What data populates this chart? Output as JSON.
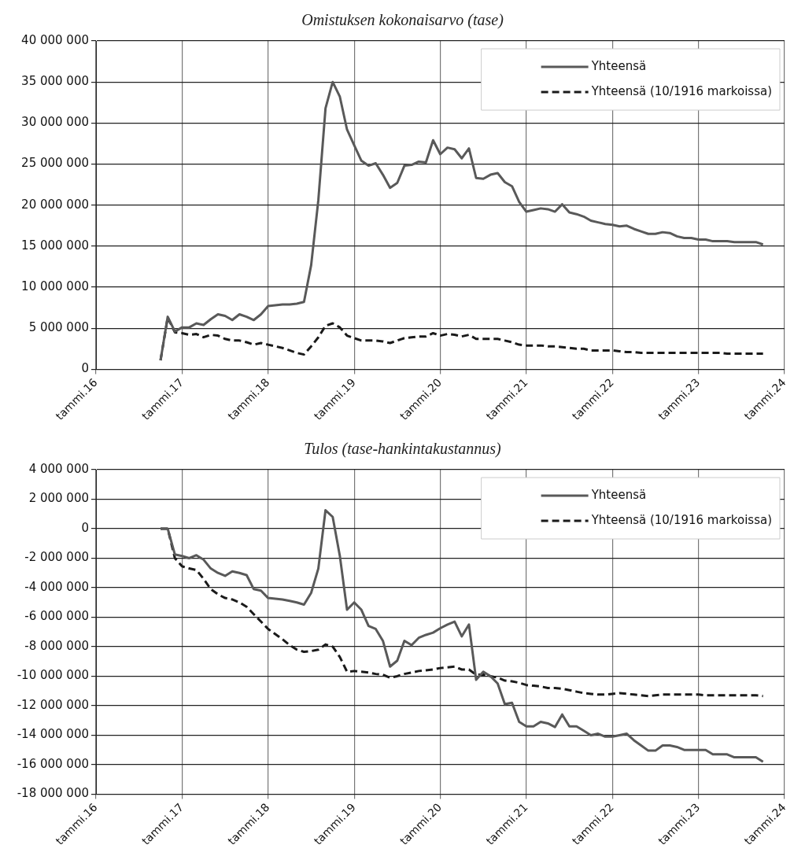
{
  "chart_data": [
    {
      "type": "line",
      "title": "Omistuksen kokonaisarvo (tase)",
      "x": [
        "2016-10",
        "2016-11",
        "2016-12",
        "2017-01",
        "2017-02",
        "2017-03",
        "2017-04",
        "2017-05",
        "2017-06",
        "2017-07",
        "2017-08",
        "2017-09",
        "2017-10",
        "2017-11",
        "2017-12",
        "2018-01",
        "2018-02",
        "2018-03",
        "2018-04",
        "2018-05",
        "2018-06",
        "2018-07",
        "2018-08",
        "2018-09",
        "2018-10",
        "2018-11",
        "2018-12",
        "2019-01",
        "2019-02",
        "2019-03",
        "2019-04",
        "2019-05",
        "2019-06",
        "2019-07",
        "2019-08",
        "2019-09",
        "2019-10",
        "2019-11",
        "2019-12",
        "2020-01",
        "2020-02",
        "2020-03",
        "2020-04",
        "2020-05",
        "2020-06",
        "2020-07",
        "2020-08",
        "2020-09",
        "2020-10",
        "2020-11",
        "2020-12",
        "2021-01",
        "2021-02",
        "2021-03",
        "2021-04",
        "2021-05",
        "2021-06",
        "2021-07",
        "2021-08",
        "2021-09",
        "2021-10",
        "2021-11",
        "2021-12",
        "2022-01",
        "2022-02",
        "2022-03",
        "2022-04",
        "2022-05",
        "2022-06",
        "2022-07",
        "2022-08",
        "2022-09",
        "2022-10",
        "2022-11",
        "2022-12",
        "2023-01",
        "2023-02",
        "2023-03",
        "2023-04",
        "2023-05",
        "2023-06",
        "2023-07",
        "2023-08",
        "2023-09",
        "2023-10"
      ],
      "series": [
        {
          "name": "Yhteensä",
          "color": "#595959",
          "line_style": "solid",
          "values": [
            1100000,
            6400000,
            4600000,
            5100000,
            5100000,
            5600000,
            5400000,
            6100000,
            6700000,
            6500000,
            6000000,
            6700000,
            6400000,
            6000000,
            6700000,
            7700000,
            7800000,
            7900000,
            7900000,
            8000000,
            8200000,
            12700000,
            20600000,
            31800000,
            35000000,
            33200000,
            29200000,
            27300000,
            25400000,
            24800000,
            25100000,
            23700000,
            22100000,
            22700000,
            24800000,
            24900000,
            25300000,
            25200000,
            27900000,
            26200000,
            27000000,
            26800000,
            25700000,
            26900000,
            23300000,
            23200000,
            23700000,
            23900000,
            22800000,
            22300000,
            20400000,
            19200000,
            19400000,
            19600000,
            19500000,
            19200000,
            20100000,
            19100000,
            18900000,
            18600000,
            18100000,
            17900000,
            17700000,
            17600000,
            17400000,
            17500000,
            17100000,
            16800000,
            16500000,
            16500000,
            16700000,
            16600000,
            16200000,
            16000000,
            16000000,
            15800000,
            15800000,
            15600000,
            15600000,
            15600000,
            15500000,
            15500000,
            15500000,
            15500000,
            15200000
          ]
        },
        {
          "name": "Yhteensä (10/1916 markoissa)",
          "color": "#1a1a1a",
          "line_style": "dashed",
          "values": [
            1100000,
            6300000,
            4500000,
            4400000,
            4200000,
            4300000,
            3900000,
            4200000,
            4100000,
            3700000,
            3500000,
            3500000,
            3300000,
            3000000,
            3200000,
            3000000,
            2800000,
            2600000,
            2300000,
            2000000,
            1800000,
            2800000,
            3900000,
            5300000,
            5600000,
            5100000,
            4100000,
            3800000,
            3500000,
            3500000,
            3500000,
            3400000,
            3200000,
            3500000,
            3800000,
            3900000,
            4000000,
            4000000,
            4400000,
            4100000,
            4300000,
            4200000,
            4000000,
            4200000,
            3700000,
            3700000,
            3700000,
            3700000,
            3500000,
            3300000,
            3000000,
            2900000,
            2900000,
            2900000,
            2800000,
            2800000,
            2700000,
            2600000,
            2500000,
            2500000,
            2300000,
            2300000,
            2300000,
            2300000,
            2200000,
            2100000,
            2100000,
            2000000,
            2000000,
            2000000,
            2000000,
            2000000,
            2000000,
            2000000,
            2000000,
            2000000,
            2000000,
            2000000,
            2000000,
            1900000,
            1900000,
            1900000,
            1900000,
            1900000,
            1900000
          ]
        }
      ],
      "xlim": [
        "2016-01",
        "2024-01"
      ],
      "xticks": [
        {
          "value": "2016-01",
          "label": "tammi.16"
        },
        {
          "value": "2017-01",
          "label": "tammi.17"
        },
        {
          "value": "2018-01",
          "label": "tammi.18"
        },
        {
          "value": "2019-01",
          "label": "tammi.19"
        },
        {
          "value": "2020-01",
          "label": "tammi.20"
        },
        {
          "value": "2021-01",
          "label": "tammi.21"
        },
        {
          "value": "2022-01",
          "label": "tammi.22"
        },
        {
          "value": "2023-01",
          "label": "tammi.23"
        },
        {
          "value": "2024-01",
          "label": "tammi.24"
        }
      ],
      "ylim": [
        0,
        40000000
      ],
      "yticks": [
        0,
        {
          "value": 5000000,
          "label": "5 000 000"
        },
        {
          "value": 10000000,
          "label": "10 000 000"
        },
        {
          "value": 15000000,
          "label": "15 000 000"
        },
        {
          "value": 20000000,
          "label": "20 000 000"
        },
        {
          "value": 25000000,
          "label": "25 000 000"
        },
        {
          "value": 30000000,
          "label": "30 000 000"
        },
        {
          "value": 35000000,
          "label": "35 000 000"
        },
        {
          "value": 40000000,
          "label": "40 000 000"
        }
      ],
      "grid": true,
      "legend": "top right",
      "marker": "none"
    },
    {
      "type": "line",
      "title": "Tulos (tase-hankintakustannus)",
      "x": [
        "2016-10",
        "2016-11",
        "2016-12",
        "2017-01",
        "2017-02",
        "2017-03",
        "2017-04",
        "2017-05",
        "2017-06",
        "2017-07",
        "2017-08",
        "2017-09",
        "2017-10",
        "2017-11",
        "2017-12",
        "2018-01",
        "2018-02",
        "2018-03",
        "2018-04",
        "2018-05",
        "2018-06",
        "2018-07",
        "2018-08",
        "2018-09",
        "2018-10",
        "2018-11",
        "2018-12",
        "2019-01",
        "2019-02",
        "2019-03",
        "2019-04",
        "2019-05",
        "2019-06",
        "2019-07",
        "2019-08",
        "2019-09",
        "2019-10",
        "2019-11",
        "2019-12",
        "2020-01",
        "2020-02",
        "2020-03",
        "2020-04",
        "2020-05",
        "2020-06",
        "2020-07",
        "2020-08",
        "2020-09",
        "2020-10",
        "2020-11",
        "2020-12",
        "2021-01",
        "2021-02",
        "2021-03",
        "2021-04",
        "2021-05",
        "2021-06",
        "2021-07",
        "2021-08",
        "2021-09",
        "2021-10",
        "2021-11",
        "2021-12",
        "2022-01",
        "2022-02",
        "2022-03",
        "2022-04",
        "2022-05",
        "2022-06",
        "2022-07",
        "2022-08",
        "2022-09",
        "2022-10",
        "2022-11",
        "2022-12",
        "2023-01",
        "2023-02",
        "2023-03",
        "2023-04",
        "2023-05",
        "2023-06",
        "2023-07",
        "2023-08",
        "2023-09",
        "2023-10"
      ],
      "series": [
        {
          "name": "Yhteensä",
          "color": "#595959",
          "line_style": "solid",
          "values": [
            0,
            0,
            -1750000,
            -1850000,
            -2000000,
            -1800000,
            -2100000,
            -2700000,
            -3000000,
            -3200000,
            -2900000,
            -3000000,
            -3150000,
            -4100000,
            -4200000,
            -4700000,
            -4750000,
            -4800000,
            -4900000,
            -5000000,
            -5150000,
            -4350000,
            -2700000,
            1250000,
            800000,
            -1850000,
            -5500000,
            -5000000,
            -5500000,
            -6600000,
            -6800000,
            -7600000,
            -9350000,
            -8950000,
            -7600000,
            -7900000,
            -7400000,
            -7200000,
            -7050000,
            -6750000,
            -6500000,
            -6300000,
            -7300000,
            -6500000,
            -10250000,
            -9700000,
            -10000000,
            -10500000,
            -11900000,
            -11800000,
            -13100000,
            -13400000,
            -13400000,
            -13100000,
            -13200000,
            -13450000,
            -12600000,
            -13400000,
            -13400000,
            -13700000,
            -14000000,
            -13900000,
            -14100000,
            -14100000,
            -14000000,
            -13900000,
            -14350000,
            -14700000,
            -15050000,
            -15050000,
            -14700000,
            -14700000,
            -14800000,
            -15000000,
            -15000000,
            -15000000,
            -15000000,
            -15300000,
            -15300000,
            -15300000,
            -15500000,
            -15500000,
            -15500000,
            -15500000,
            -15800000
          ]
        },
        {
          "name": "Yhteensä (10/1916 markoissa)",
          "color": "#1a1a1a",
          "line_style": "dashed",
          "values": [
            0,
            0,
            -2000000,
            -2550000,
            -2700000,
            -2800000,
            -3400000,
            -4100000,
            -4450000,
            -4700000,
            -4800000,
            -5000000,
            -5300000,
            -5800000,
            -6300000,
            -6800000,
            -7150000,
            -7500000,
            -7900000,
            -8200000,
            -8350000,
            -8300000,
            -8200000,
            -7850000,
            -8000000,
            -8700000,
            -9700000,
            -9650000,
            -9700000,
            -9750000,
            -9850000,
            -9900000,
            -10100000,
            -10000000,
            -9850000,
            -9750000,
            -9650000,
            -9600000,
            -9550000,
            -9450000,
            -9400000,
            -9350000,
            -9550000,
            -9550000,
            -9900000,
            -9900000,
            -10000000,
            -10100000,
            -10300000,
            -10350000,
            -10450000,
            -10600000,
            -10650000,
            -10700000,
            -10800000,
            -10800000,
            -10850000,
            -10950000,
            -11050000,
            -11150000,
            -11200000,
            -11250000,
            -11250000,
            -11200000,
            -11150000,
            -11200000,
            -11250000,
            -11300000,
            -11350000,
            -11300000,
            -11250000,
            -11250000,
            -11250000,
            -11250000,
            -11250000,
            -11250000,
            -11300000,
            -11300000,
            -11300000,
            -11300000,
            -11300000,
            -11300000,
            -11300000,
            -11300000,
            -11350000
          ]
        }
      ],
      "xlim": [
        "2016-01",
        "2024-01"
      ],
      "xticks": [
        {
          "value": "2016-01",
          "label": "tammi.16"
        },
        {
          "value": "2017-01",
          "label": "tammi.17"
        },
        {
          "value": "2018-01",
          "label": "tammi.18"
        },
        {
          "value": "2019-01",
          "label": "tammi.19"
        },
        {
          "value": "2020-01",
          "label": "tammi.20"
        },
        {
          "value": "2021-01",
          "label": "tammi.21"
        },
        {
          "value": "2022-01",
          "label": "tammi.22"
        },
        {
          "value": "2023-01",
          "label": "tammi.23"
        },
        {
          "value": "2024-01",
          "label": "tammi.24"
        }
      ],
      "ylim": [
        -18000000,
        4000000
      ],
      "yticks": [
        {
          "value": -18000000,
          "label": "-18 000 000"
        },
        {
          "value": -16000000,
          "label": "-16 000 000"
        },
        {
          "value": -14000000,
          "label": "-14 000 000"
        },
        {
          "value": -12000000,
          "label": "-12 000 000"
        },
        {
          "value": -10000000,
          "label": "-10 000 000"
        },
        {
          "value": -8000000,
          "label": "-8 000 000"
        },
        {
          "value": -6000000,
          "label": "-6 000 000"
        },
        {
          "value": -4000000,
          "label": "-4 000 000"
        },
        {
          "value": -2000000,
          "label": "-2 000 000"
        },
        0,
        {
          "value": 2000000,
          "label": "2 000 000"
        },
        {
          "value": 4000000,
          "label": "4 000 000"
        }
      ],
      "grid": true,
      "legend": "top right",
      "marker": "none"
    }
  ]
}
